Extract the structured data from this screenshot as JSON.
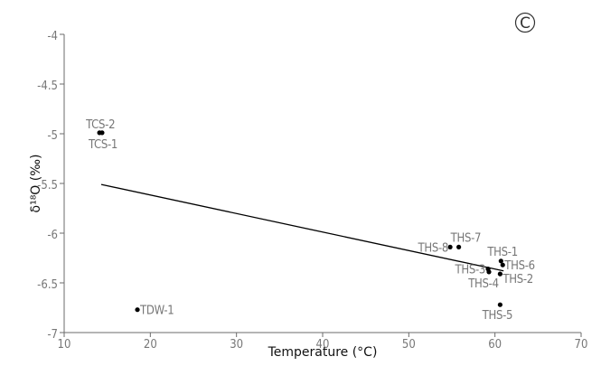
{
  "chart_data": {
    "type": "scatter",
    "panel_label": "C",
    "xlabel": "Temperature (°C)",
    "ylabel": "δ¹⁸O (‰)",
    "xlim": [
      10,
      70
    ],
    "ylim": [
      -7,
      -4
    ],
    "xticks": [
      10,
      20,
      30,
      40,
      50,
      60,
      70
    ],
    "yticks": [
      -4,
      -4.5,
      -5,
      -5.5,
      -6,
      -6.5,
      -7
    ],
    "grid": false,
    "points": [
      {
        "label": "TCS-2",
        "x": 14.1,
        "y": -4.99
      },
      {
        "label": "TCS-1",
        "x": 14.4,
        "y": -4.99
      },
      {
        "label": "TDW-1",
        "x": 18.5,
        "y": -6.77
      },
      {
        "label": "THS-8",
        "x": 54.8,
        "y": -6.14
      },
      {
        "label": "THS-7",
        "x": 55.8,
        "y": -6.14
      },
      {
        "label": "THS-1",
        "x": 60.7,
        "y": -6.28
      },
      {
        "label": "THS-6",
        "x": 60.9,
        "y": -6.32
      },
      {
        "label": "THS-3",
        "x": 59.2,
        "y": -6.36
      },
      {
        "label": "THS-4",
        "x": 59.3,
        "y": -6.39
      },
      {
        "label": "THS-2",
        "x": 60.6,
        "y": -6.41
      },
      {
        "label": "THS-5",
        "x": 60.6,
        "y": -6.72
      }
    ],
    "trendline": {
      "x": [
        14.3,
        61.0
      ],
      "y": [
        -5.51,
        -6.38
      ]
    }
  }
}
